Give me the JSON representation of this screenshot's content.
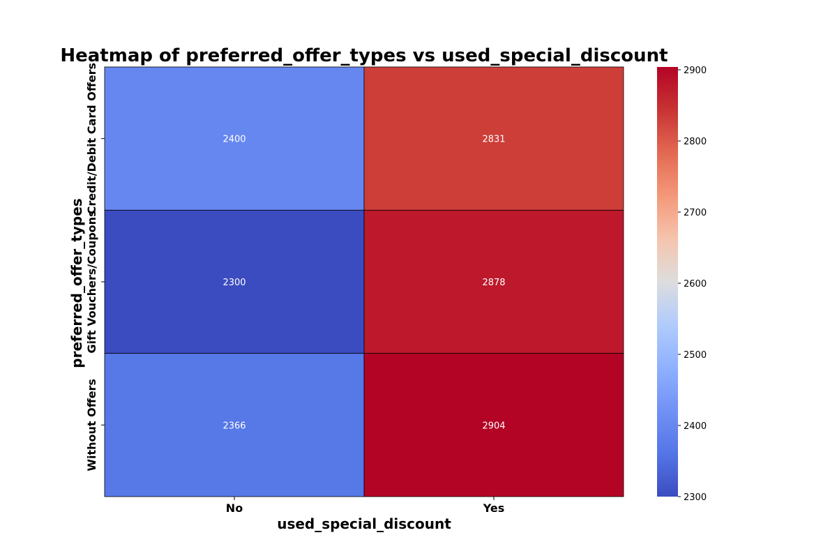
{
  "chart_data": {
    "type": "heatmap",
    "title": "Heatmap of preferred_offer_types vs used_special_discount",
    "xlabel": "used_special_discount",
    "ylabel": "preferred_offer_types",
    "x_categories": [
      "No",
      "Yes"
    ],
    "y_categories": [
      "Credit/Debit Card Offers",
      "Gift Vouchers/Coupons",
      "Without Offers"
    ],
    "values": [
      [
        2400,
        2831
      ],
      [
        2300,
        2878
      ],
      [
        2366,
        2904
      ]
    ],
    "colormap": "coolwarm",
    "vmin": 2300,
    "vmax": 2904,
    "colorbar_ticks": [
      2300,
      2400,
      2500,
      2600,
      2700,
      2800,
      2900
    ],
    "cell_annotations": true,
    "cell_border_color": "#000000"
  }
}
